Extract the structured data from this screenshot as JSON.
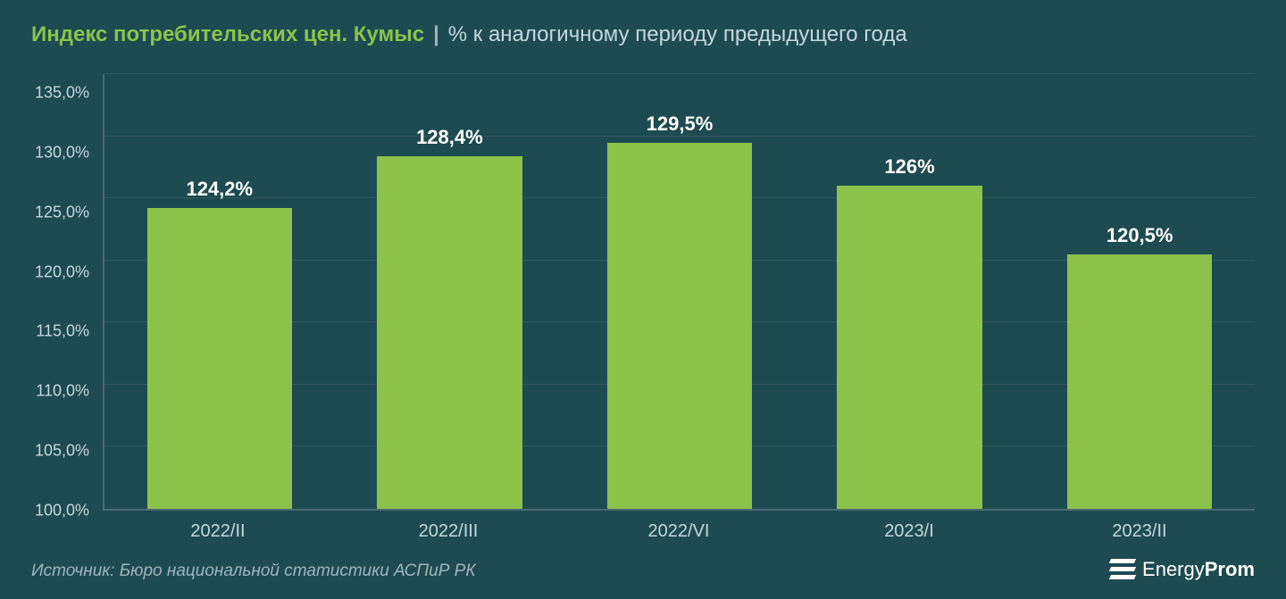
{
  "title": {
    "main": "Индекс потребительских цен. Кумыс",
    "separator": "|",
    "sub": "% к аналогичному периоду предыдущего года",
    "main_color": "#8bc34a",
    "sub_color": "#c5d8dc",
    "fontsize": 24
  },
  "chart": {
    "type": "bar",
    "categories": [
      "2022/II",
      "2022/III",
      "2022/VI",
      "2023/I",
      "2023/II"
    ],
    "values": [
      124.2,
      128.4,
      129.5,
      126,
      120.5
    ],
    "value_labels": [
      "124,2%",
      "128,4%",
      "129,5%",
      "126%",
      "120,5%"
    ],
    "bar_color": "#8bc34a",
    "bar_width": 0.7,
    "ylim": [
      100,
      135
    ],
    "ytick_step": 5,
    "ytick_labels": [
      "135,0%",
      "130,0%",
      "125,0%",
      "120,0%",
      "115,0%",
      "110,0%",
      "105,0%",
      "100,0%"
    ],
    "background_color": "#1e4a52",
    "grid_color": "#35565d",
    "axis_color": "#4a6b72",
    "tick_label_color": "#c5d8dc",
    "value_label_color": "#ffffff",
    "tick_fontsize": 18,
    "value_label_fontsize": 22
  },
  "source": "Источник: Бюро национальной статистики АСПиР РК",
  "brand": {
    "prefix": "Energy",
    "suffix": "Prom"
  },
  "colors": {
    "brand_icon": "#ffffff",
    "source_text": "#9fb5ba"
  }
}
